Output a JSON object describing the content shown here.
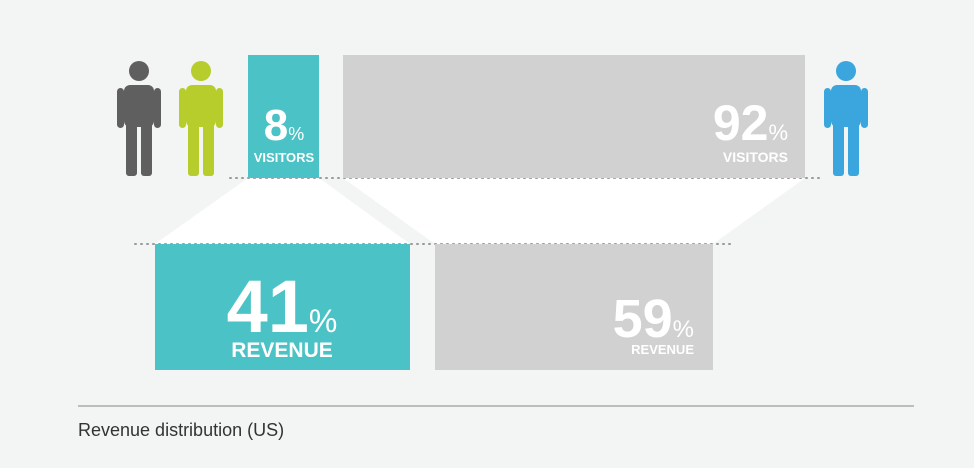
{
  "colors": {
    "teal": "#4bc2c5",
    "gray_bar": "#d1d1d1",
    "person_dark": "#5f5f5f",
    "person_green": "#b7cd2c",
    "person_blue": "#3aa6dd",
    "funnel": "#ffffff",
    "text_on_bar": "#ffffff",
    "dots": "#9a9a9a",
    "rule": "#a9a9a9"
  },
  "icons": [
    "person-icon",
    "person-icon",
    "person-icon"
  ],
  "chart_data": {
    "type": "bar",
    "title": "",
    "caption": "Revenue distribution (US)",
    "visitors": [
      {
        "value": "8",
        "unit": "%",
        "label": "VISITORS",
        "color": "teal"
      },
      {
        "value": "92",
        "unit": "%",
        "label": "VISITORS",
        "color": "gray"
      }
    ],
    "revenue": [
      {
        "value": "41",
        "unit": "%",
        "label": "REVENUE",
        "color": "teal"
      },
      {
        "value": "59",
        "unit": "%",
        "label": "REVENUE",
        "color": "gray"
      }
    ]
  }
}
